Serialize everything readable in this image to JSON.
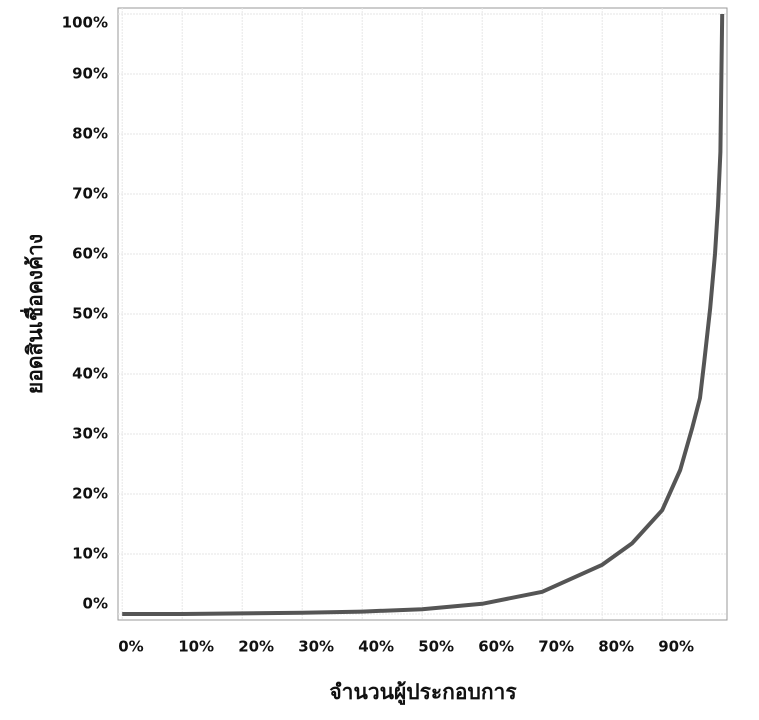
{
  "chart_data": {
    "type": "line",
    "x_label": "จำนวนผู้ประกอบการ",
    "y_label": "ยอดสินเชื่อคงค้าง",
    "x": [
      0,
      10,
      20,
      30,
      40,
      50,
      60,
      70,
      80,
      85,
      90,
      93,
      95,
      96.3,
      97,
      98,
      98.8,
      99.3,
      99.7,
      100
    ],
    "series": [
      {
        "color": "#555555",
        "values": [
          0,
          0,
          0.1,
          0.2,
          0.4,
          0.8,
          1.7,
          3.7,
          8.2,
          11.8,
          17.3,
          24,
          31,
          36,
          42,
          51,
          60,
          68,
          77,
          100
        ]
      }
    ],
    "xlim": [
      -0.7,
      100.8
    ],
    "ylim": [
      -1,
      101
    ],
    "xticks": [
      {
        "value": 0,
        "label": "0%"
      },
      {
        "value": 10,
        "label": "10%"
      },
      {
        "value": 20,
        "label": "20%"
      },
      {
        "value": 30,
        "label": "30%"
      },
      {
        "value": 40,
        "label": "40%"
      },
      {
        "value": 50,
        "label": "50%"
      },
      {
        "value": 60,
        "label": "60%"
      },
      {
        "value": 70,
        "label": "70%"
      },
      {
        "value": 80,
        "label": "80%"
      },
      {
        "value": 90,
        "label": "90%"
      }
    ],
    "yticks": [
      {
        "value": 0,
        "label": "0%"
      },
      {
        "value": 10,
        "label": "10%"
      },
      {
        "value": 20,
        "label": "20%"
      },
      {
        "value": 30,
        "label": "30%"
      },
      {
        "value": 40,
        "label": "40%"
      },
      {
        "value": 50,
        "label": "50%"
      },
      {
        "value": 60,
        "label": "60%"
      },
      {
        "value": 70,
        "label": "70%"
      },
      {
        "value": 80,
        "label": "80%"
      },
      {
        "value": 90,
        "label": "90%"
      },
      {
        "value": 100,
        "label": "100%"
      }
    ],
    "grid": true
  }
}
